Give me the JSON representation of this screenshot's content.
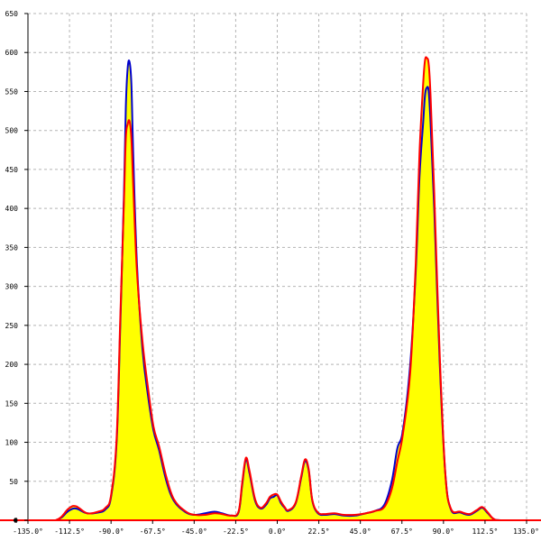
{
  "chart_data": {
    "type": "area",
    "title": "",
    "xlabel": "",
    "ylabel": "",
    "xlim": [
      -135,
      135
    ],
    "ylim": [
      0,
      650
    ],
    "grid": true,
    "x_ticks": [
      -135,
      -112.5,
      -90,
      -67.5,
      -45,
      -22.5,
      0,
      22.5,
      45,
      67.5,
      90,
      112.5,
      135
    ],
    "x_tick_labels": [
      "-135.0°",
      "-112.5°",
      "-90.0°",
      "-67.5°",
      "-45.0°",
      "-22.5°",
      "0.0°",
      "22.5°",
      "45.0°",
      "67.5°",
      "90.0°",
      "112.5°",
      "135.0°"
    ],
    "y_ticks": [
      0,
      50,
      100,
      150,
      200,
      250,
      300,
      350,
      400,
      450,
      500,
      550,
      600,
      650
    ],
    "y_tick_labels": [
      "0",
      "50",
      "100",
      "150",
      "200",
      "250",
      "300",
      "350",
      "400",
      "450",
      "500",
      "550",
      "600",
      "650"
    ],
    "series": [
      {
        "color": "#0000cc",
        "fill": "#ffff00",
        "x": [
          -135,
          -120,
          -113,
          -109,
          -103,
          -97,
          -93,
          -90,
          -87,
          -85,
          -83,
          -82,
          -81,
          -80,
          -79,
          -78,
          -76,
          -73,
          -70,
          -67,
          -64,
          -60,
          -56,
          -50,
          -45,
          -39,
          -34,
          -30,
          -25,
          -21,
          -19,
          -17,
          -15,
          -12,
          -9,
          -6,
          -4,
          -2,
          0,
          2,
          4,
          6,
          10,
          13,
          15,
          17,
          19,
          22,
          26,
          31,
          36,
          42,
          48,
          53,
          58,
          62,
          65,
          68,
          72,
          75,
          77,
          79,
          80,
          81,
          82,
          83,
          85,
          88,
          91,
          94,
          99,
          104,
          108,
          111,
          114,
          117,
          121,
          135
        ],
        "y": [
          0,
          0,
          12,
          15,
          9,
          10,
          14,
          30,
          100,
          250,
          420,
          530,
          580,
          588,
          560,
          470,
          330,
          220,
          160,
          115,
          90,
          50,
          25,
          11,
          7,
          9,
          11,
          9,
          6,
          10,
          45,
          78,
          60,
          25,
          15,
          20,
          28,
          30,
          32,
          22,
          16,
          12,
          22,
          55,
          76,
          64,
          25,
          9,
          7,
          8,
          6,
          6,
          9,
          12,
          20,
          50,
          92,
          115,
          200,
          320,
          440,
          510,
          545,
          555,
          550,
          510,
          400,
          200,
          60,
          14,
          10,
          7,
          12,
          16,
          9,
          2,
          0,
          0
        ]
      },
      {
        "color": "#ff0000",
        "fill": "#ffff00",
        "x": [
          -135,
          -120,
          -113,
          -109,
          -103,
          -97,
          -93,
          -90,
          -87,
          -85,
          -83,
          -82,
          -81,
          -80,
          -79,
          -78,
          -76,
          -73,
          -70,
          -67,
          -64,
          -60,
          -56,
          -50,
          -45,
          -39,
          -34,
          -30,
          -25,
          -21,
          -19,
          -17,
          -15,
          -12,
          -9,
          -6,
          -4,
          -2,
          0,
          2,
          4,
          6,
          10,
          13,
          15,
          17,
          19,
          22,
          26,
          31,
          36,
          42,
          48,
          53,
          58,
          62,
          65,
          68,
          72,
          75,
          77,
          79,
          80,
          81,
          82,
          83,
          85,
          88,
          91,
          94,
          99,
          104,
          108,
          111,
          114,
          117,
          121,
          135
        ],
        "y": [
          0,
          0,
          15,
          18,
          9,
          11,
          16,
          32,
          105,
          260,
          410,
          490,
          508,
          512,
          490,
          430,
          320,
          230,
          170,
          120,
          95,
          55,
          27,
          12,
          7,
          7,
          9,
          8,
          6,
          11,
          48,
          80,
          63,
          27,
          16,
          22,
          30,
          33,
          33,
          24,
          17,
          13,
          23,
          57,
          78,
          66,
          26,
          10,
          8,
          9,
          7,
          7,
          9,
          12,
          17,
          40,
          75,
          110,
          190,
          330,
          470,
          560,
          590,
          593,
          585,
          545,
          420,
          210,
          60,
          15,
          11,
          8,
          13,
          17,
          10,
          2,
          0,
          0
        ]
      }
    ]
  }
}
